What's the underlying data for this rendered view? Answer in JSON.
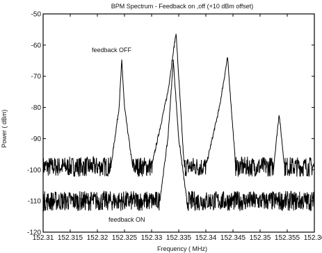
{
  "chart_data": {
    "type": "line",
    "title": "BPM Spectrum - Feedback on ,off (+10 dBm offset)",
    "xlabel": "Frequency ( MHz)",
    "ylabel": "Power ( dBm)",
    "xlim": [
      152.31,
      152.36
    ],
    "ylim": [
      -120,
      -50
    ],
    "xticks": [
      "152.31",
      "152.315",
      "152.32",
      "152.325",
      "152.33",
      "152.335",
      "152.34",
      "152.345",
      "152.35",
      "152.355",
      "152.36"
    ],
    "yticks": [
      "-120",
      "-110",
      "-100",
      "-90",
      "-80",
      "-70",
      "-60",
      "-50"
    ],
    "grid": false,
    "line_color": "#000000",
    "series": [
      {
        "annotation": "feedback OFF",
        "noise_floor": -99,
        "x": [
          152.31,
          152.315,
          152.3225,
          152.324,
          152.3245,
          152.325,
          152.3265,
          152.33,
          152.333,
          152.3345,
          152.336,
          152.34,
          152.3425,
          152.344,
          152.3455,
          152.35,
          152.3525,
          152.3535,
          152.3545,
          152.3555,
          152.36
        ],
        "y": [
          -99,
          -99,
          -99,
          -80,
          -65,
          -80,
          -99,
          -99,
          -75,
          -56,
          -99,
          -99,
          -80,
          -64,
          -99,
          -99,
          -99,
          -82,
          -99,
          -99,
          -99
        ]
      },
      {
        "annotation": "feedback ON",
        "noise_floor": -110,
        "x": [
          152.31,
          152.315,
          152.32,
          152.325,
          152.3315,
          152.333,
          152.334,
          152.335,
          152.3365,
          152.34,
          152.345,
          152.35,
          152.355,
          152.36
        ],
        "y": [
          -110,
          -110,
          -110,
          -110,
          -110,
          -90,
          -65,
          -90,
          -110,
          -110,
          -110,
          -110,
          -110,
          -110
        ]
      }
    ]
  }
}
